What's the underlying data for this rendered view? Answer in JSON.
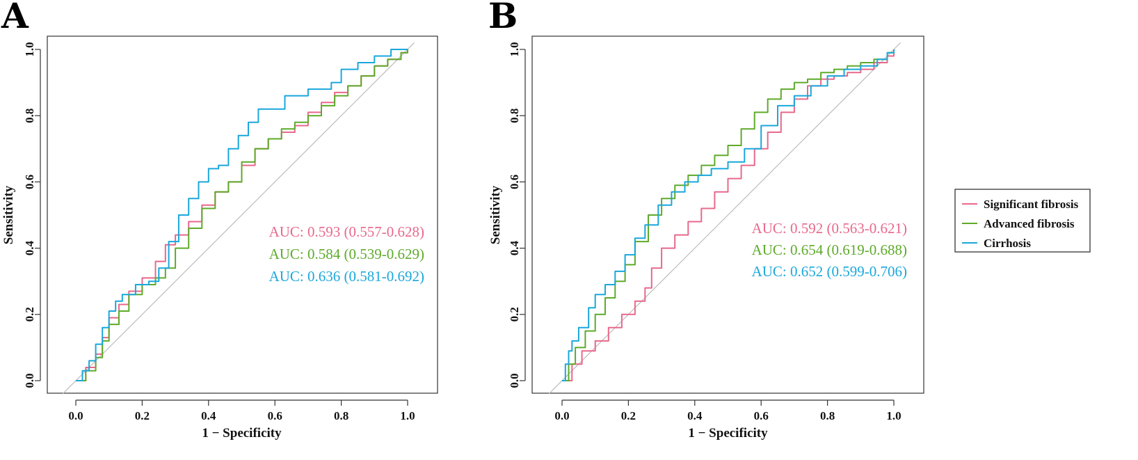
{
  "chart_data": [
    {
      "panel": "A",
      "type": "line",
      "xlabel": "1 − Specificity",
      "ylabel": "Sensitivity",
      "xlim": [
        0,
        1
      ],
      "ylim": [
        0,
        1
      ],
      "xticks": [
        "0.0",
        "0.2",
        "0.4",
        "0.6",
        "0.8",
        "1.0"
      ],
      "yticks": [
        "0.0",
        "0.2",
        "0.4",
        "0.6",
        "0.8",
        "1.0"
      ],
      "reference_line": true,
      "series": [
        {
          "name": "Significant fibrosis",
          "color": "#E8688B",
          "auc_label": "AUC: 0.593 (0.557-0.628)",
          "x": [
            0,
            0.03,
            0.06,
            0.08,
            0.1,
            0.13,
            0.16,
            0.2,
            0.24,
            0.27,
            0.3,
            0.34,
            0.38,
            0.42,
            0.46,
            0.5,
            0.54,
            0.58,
            0.62,
            0.66,
            0.7,
            0.74,
            0.78,
            0.82,
            0.86,
            0.9,
            0.94,
            0.98,
            1
          ],
          "y": [
            0,
            0.04,
            0.08,
            0.13,
            0.19,
            0.23,
            0.27,
            0.31,
            0.36,
            0.41,
            0.44,
            0.48,
            0.53,
            0.57,
            0.6,
            0.65,
            0.7,
            0.73,
            0.75,
            0.77,
            0.81,
            0.84,
            0.87,
            0.89,
            0.92,
            0.95,
            0.97,
            0.99,
            1
          ]
        },
        {
          "name": "Advanced fibrosis",
          "color": "#5EAA2A",
          "auc_label": "AUC: 0.584 (0.539-0.629)",
          "x": [
            0,
            0.03,
            0.06,
            0.08,
            0.1,
            0.13,
            0.16,
            0.2,
            0.24,
            0.27,
            0.3,
            0.34,
            0.38,
            0.42,
            0.46,
            0.5,
            0.54,
            0.58,
            0.62,
            0.66,
            0.7,
            0.74,
            0.78,
            0.82,
            0.86,
            0.9,
            0.94,
            0.98,
            1
          ],
          "y": [
            0,
            0.03,
            0.07,
            0.12,
            0.17,
            0.21,
            0.26,
            0.29,
            0.31,
            0.34,
            0.4,
            0.46,
            0.52,
            0.57,
            0.6,
            0.66,
            0.7,
            0.73,
            0.76,
            0.78,
            0.8,
            0.83,
            0.86,
            0.89,
            0.92,
            0.95,
            0.97,
            0.99,
            1
          ]
        },
        {
          "name": "Cirrhosis",
          "color": "#1AA7DB",
          "auc_label": "AUC: 0.636 (0.581-0.692)",
          "x": [
            0,
            0.02,
            0.04,
            0.06,
            0.08,
            0.1,
            0.12,
            0.14,
            0.18,
            0.22,
            0.25,
            0.28,
            0.31,
            0.34,
            0.37,
            0.4,
            0.43,
            0.46,
            0.49,
            0.52,
            0.55,
            0.6,
            0.63,
            0.66,
            0.7,
            0.74,
            0.77,
            0.8,
            0.85,
            0.9,
            0.95,
            1
          ],
          "y": [
            0,
            0.03,
            0.06,
            0.11,
            0.16,
            0.21,
            0.24,
            0.26,
            0.29,
            0.3,
            0.34,
            0.42,
            0.5,
            0.55,
            0.6,
            0.64,
            0.65,
            0.7,
            0.74,
            0.78,
            0.82,
            0.82,
            0.86,
            0.86,
            0.88,
            0.88,
            0.9,
            0.94,
            0.96,
            0.98,
            1,
            1
          ]
        }
      ]
    },
    {
      "panel": "B",
      "type": "line",
      "xlabel": "1 − Specificity",
      "ylabel": "Sensitivity",
      "xlim": [
        0,
        1
      ],
      "ylim": [
        0,
        1
      ],
      "xticks": [
        "0.0",
        "0.2",
        "0.4",
        "0.6",
        "0.8",
        "1.0"
      ],
      "yticks": [
        "0.0",
        "0.2",
        "0.4",
        "0.6",
        "0.8",
        "1.0"
      ],
      "reference_line": true,
      "series": [
        {
          "name": "Significant fibrosis",
          "color": "#E8688B",
          "auc_label": "AUC: 0.592 (0.563-0.621)",
          "x": [
            0,
            0.03,
            0.06,
            0.1,
            0.14,
            0.18,
            0.22,
            0.25,
            0.27,
            0.3,
            0.34,
            0.38,
            0.42,
            0.46,
            0.5,
            0.54,
            0.58,
            0.62,
            0.66,
            0.7,
            0.74,
            0.78,
            0.82,
            0.86,
            0.9,
            0.94,
            0.98,
            1
          ],
          "y": [
            0,
            0.05,
            0.09,
            0.12,
            0.16,
            0.2,
            0.24,
            0.28,
            0.34,
            0.4,
            0.44,
            0.48,
            0.52,
            0.57,
            0.61,
            0.65,
            0.7,
            0.75,
            0.81,
            0.85,
            0.89,
            0.91,
            0.92,
            0.93,
            0.94,
            0.96,
            0.98,
            1
          ]
        },
        {
          "name": "Advanced fibrosis",
          "color": "#5EAA2A",
          "auc_label": "AUC: 0.654 (0.619-0.688)",
          "x": [
            0,
            0.02,
            0.04,
            0.07,
            0.1,
            0.13,
            0.16,
            0.19,
            0.22,
            0.26,
            0.3,
            0.34,
            0.38,
            0.42,
            0.46,
            0.5,
            0.54,
            0.58,
            0.62,
            0.66,
            0.7,
            0.74,
            0.78,
            0.82,
            0.86,
            0.9,
            0.94,
            0.98,
            1
          ],
          "y": [
            0,
            0.05,
            0.1,
            0.15,
            0.2,
            0.25,
            0.3,
            0.35,
            0.42,
            0.5,
            0.55,
            0.59,
            0.62,
            0.65,
            0.68,
            0.71,
            0.76,
            0.81,
            0.85,
            0.88,
            0.9,
            0.91,
            0.93,
            0.94,
            0.95,
            0.96,
            0.97,
            0.99,
            1
          ]
        },
        {
          "name": "Cirrhosis",
          "color": "#1AA7DB",
          "auc_label": "AUC: 0.652 (0.599-0.706)",
          "x": [
            0,
            0.01,
            0.02,
            0.03,
            0.05,
            0.08,
            0.1,
            0.13,
            0.16,
            0.19,
            0.22,
            0.25,
            0.29,
            0.33,
            0.37,
            0.41,
            0.45,
            0.5,
            0.55,
            0.6,
            0.65,
            0.7,
            0.75,
            0.8,
            0.85,
            0.9,
            0.95,
            0.98,
            1
          ],
          "y": [
            0,
            0.05,
            0.09,
            0.12,
            0.16,
            0.22,
            0.26,
            0.29,
            0.33,
            0.38,
            0.43,
            0.47,
            0.53,
            0.57,
            0.6,
            0.62,
            0.64,
            0.66,
            0.7,
            0.77,
            0.83,
            0.86,
            0.89,
            0.92,
            0.94,
            0.95,
            0.97,
            0.99,
            1
          ]
        }
      ]
    }
  ],
  "legend": {
    "items": [
      {
        "label": "Significant fibrosis",
        "color": "#E8688B"
      },
      {
        "label": "Advanced fibrosis",
        "color": "#5EAA2A"
      },
      {
        "label": "Cirrhosis",
        "color": "#1AA7DB"
      }
    ]
  }
}
